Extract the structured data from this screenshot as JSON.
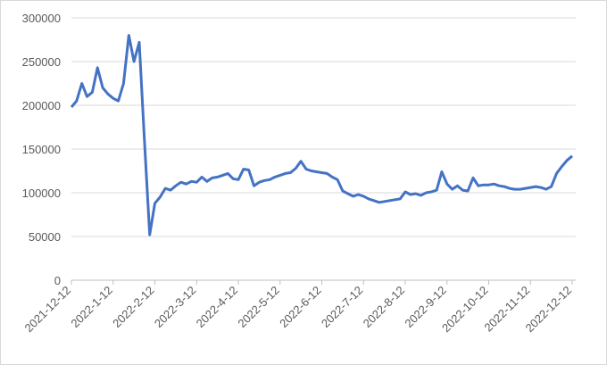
{
  "chart_data": {
    "type": "line",
    "categories": [
      "2021-12-12",
      null,
      null,
      null,
      null,
      null,
      null,
      null,
      "2022-1-12",
      null,
      null,
      null,
      null,
      null,
      null,
      null,
      "2022-2-12",
      null,
      null,
      null,
      null,
      null,
      null,
      null,
      "2022-3-12",
      null,
      null,
      null,
      null,
      null,
      null,
      null,
      "2022-4-12",
      null,
      null,
      null,
      null,
      null,
      null,
      null,
      "2022-5-12",
      null,
      null,
      null,
      null,
      null,
      null,
      null,
      "2022-6-12",
      null,
      null,
      null,
      null,
      null,
      null,
      null,
      "2022-7-12",
      null,
      null,
      null,
      null,
      null,
      null,
      null,
      "2022-8-12",
      null,
      null,
      null,
      null,
      null,
      null,
      null,
      "2022-9-12",
      null,
      null,
      null,
      null,
      null,
      null,
      null,
      "2022-10-12",
      null,
      null,
      null,
      null,
      null,
      null,
      null,
      "2022-11-12",
      null,
      null,
      null,
      null,
      null,
      null,
      null,
      "2022-12-12"
    ],
    "series": [
      {
        "color": "#4472c4",
        "values": [
          198000,
          205000,
          225000,
          210000,
          215000,
          243000,
          220000,
          213000,
          208000,
          205000,
          225000,
          280000,
          250000,
          272000,
          160000,
          52000,
          88000,
          95000,
          105000,
          103000,
          108000,
          112000,
          110000,
          113000,
          112000,
          118000,
          113000,
          117000,
          118000,
          120000,
          122000,
          116000,
          115000,
          127000,
          126000,
          108000,
          112000,
          114000,
          115000,
          118000,
          120000,
          122000,
          123000,
          128000,
          136000,
          127000,
          125000,
          124000,
          123000,
          122000,
          118000,
          115000,
          102000,
          99000,
          96000,
          98000,
          96000,
          93000,
          91000,
          89000,
          90000,
          91000,
          92000,
          93000,
          101000,
          98000,
          99000,
          97000,
          100000,
          101000,
          103000,
          124000,
          110000,
          104000,
          108000,
          103000,
          102000,
          117000,
          108000,
          109000,
          109000,
          110000,
          108000,
          107000,
          105000,
          104000,
          104000,
          105000,
          106000,
          107000,
          106000,
          104000,
          107000,
          122000,
          130000,
          137000,
          142000
        ]
      }
    ],
    "ylim": [
      0,
      300000
    ],
    "yticks": [
      0,
      50000,
      100000,
      150000,
      200000,
      250000,
      300000
    ],
    "grid": true
  }
}
